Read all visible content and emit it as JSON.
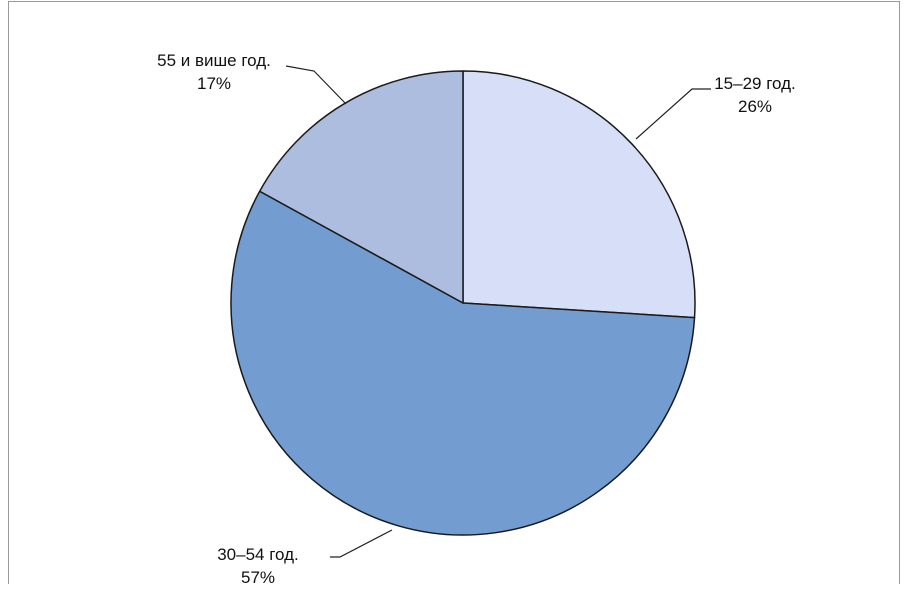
{
  "chart_data": {
    "type": "pie",
    "title": "",
    "slices": [
      {
        "label": "15–29 год.",
        "value": 26,
        "value_label": "26%",
        "color": "#d6dff7"
      },
      {
        "label": "30–54 год.",
        "value": 57,
        "value_label": "57%",
        "color": "#739dd1"
      },
      {
        "label": "55 и више год.",
        "value": 17,
        "value_label": "17%",
        "color": "#adbde0"
      }
    ],
    "start_angle_deg": 0,
    "direction": "clockwise",
    "legend": "none",
    "stroke_color": "#1a1a1a"
  }
}
